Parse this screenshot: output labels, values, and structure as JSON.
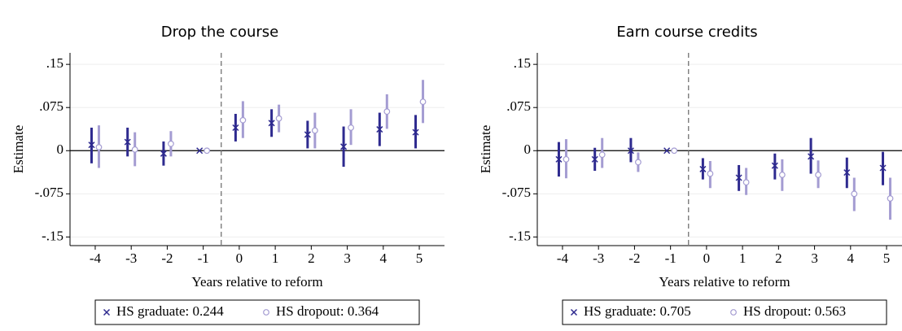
{
  "chart_data": [
    {
      "type": "errorbar",
      "title": "Drop the course",
      "xlabel": "Years relative to reform",
      "ylabel": "Estimate",
      "x": [
        -4,
        -3,
        -2,
        -1,
        0,
        1,
        2,
        3,
        4,
        5
      ],
      "xlim": [
        -4.7,
        5.7
      ],
      "xticks": [
        -4,
        -3,
        -2,
        -1,
        0,
        1,
        2,
        3,
        4,
        5
      ],
      "ylim": [
        -0.165,
        0.17
      ],
      "yticks": [
        {
          "value": -0.15,
          "label": "-.15"
        },
        {
          "value": -0.075,
          "label": "-.075"
        },
        0,
        {
          "value": 0.075,
          "label": ".075"
        },
        {
          "value": 0.15,
          "label": ".15"
        }
      ],
      "grid": true,
      "vline": -0.5,
      "hline": 0,
      "series": [
        {
          "name": "HS graduate: 0.244",
          "color": "#2e2a8f",
          "marker": "x",
          "values": [
            0.01,
            0.015,
            -0.005,
            0,
            0.04,
            0.048,
            0.028,
            0.007,
            0.037,
            0.032
          ],
          "lower": [
            -0.022,
            -0.01,
            -0.026,
            0,
            0.016,
            0.024,
            0.004,
            -0.028,
            0.008,
            0.004
          ],
          "upper": [
            0.04,
            0.04,
            0.016,
            0,
            0.064,
            0.072,
            0.052,
            0.042,
            0.066,
            0.062
          ]
        },
        {
          "name": "HS dropout: 0.364",
          "color": "#a49cd2",
          "marker": "circle",
          "values": [
            0.006,
            0.002,
            0.012,
            0,
            0.053,
            0.056,
            0.035,
            0.04,
            0.068,
            0.085
          ],
          "lower": [
            -0.03,
            -0.027,
            -0.01,
            0,
            0.022,
            0.032,
            0.004,
            0.01,
            0.038,
            0.048
          ],
          "upper": [
            0.044,
            0.032,
            0.034,
            0,
            0.086,
            0.08,
            0.066,
            0.072,
            0.098,
            0.123
          ]
        }
      ]
    },
    {
      "type": "errorbar",
      "title": "Earn course credits",
      "xlabel": "Years relative to reform",
      "ylabel": "Estimate",
      "x": [
        -4,
        -3,
        -2,
        -1,
        0,
        1,
        2,
        3,
        4,
        5
      ],
      "xlim": [
        -4.7,
        5.7
      ],
      "xticks": [
        -4,
        -3,
        -2,
        -1,
        0,
        1,
        2,
        3,
        4,
        5
      ],
      "ylim": [
        -0.165,
        0.17
      ],
      "yticks": [
        {
          "value": -0.15,
          "label": "-.15"
        },
        {
          "value": -0.075,
          "label": "-.075"
        },
        0,
        {
          "value": 0.075,
          "label": ".075"
        },
        {
          "value": 0.15,
          "label": ".15"
        }
      ],
      "grid": true,
      "vline": -0.5,
      "hline": 0,
      "series": [
        {
          "name": "HS graduate: 0.705",
          "color": "#2e2a8f",
          "marker": "x",
          "values": [
            -0.015,
            -0.015,
            0,
            0,
            -0.032,
            -0.047,
            -0.026,
            -0.01,
            -0.038,
            -0.03
          ],
          "lower": [
            -0.045,
            -0.035,
            -0.02,
            0,
            -0.05,
            -0.07,
            -0.05,
            -0.04,
            -0.065,
            -0.06
          ],
          "upper": [
            0.015,
            0.005,
            0.022,
            0,
            -0.013,
            -0.025,
            -0.005,
            0.022,
            -0.012,
            -0.002
          ]
        },
        {
          "name": "HS dropout: 0.563",
          "color": "#a49cd2",
          "marker": "circle",
          "values": [
            -0.015,
            -0.007,
            -0.02,
            0,
            -0.04,
            -0.055,
            -0.042,
            -0.042,
            -0.075,
            -0.083
          ],
          "lower": [
            -0.048,
            -0.03,
            -0.037,
            0,
            -0.065,
            -0.077,
            -0.07,
            -0.065,
            -0.105,
            -0.12
          ],
          "upper": [
            0.02,
            0.022,
            -0.003,
            0,
            -0.018,
            -0.03,
            -0.015,
            -0.017,
            -0.047,
            -0.047
          ]
        }
      ]
    }
  ]
}
